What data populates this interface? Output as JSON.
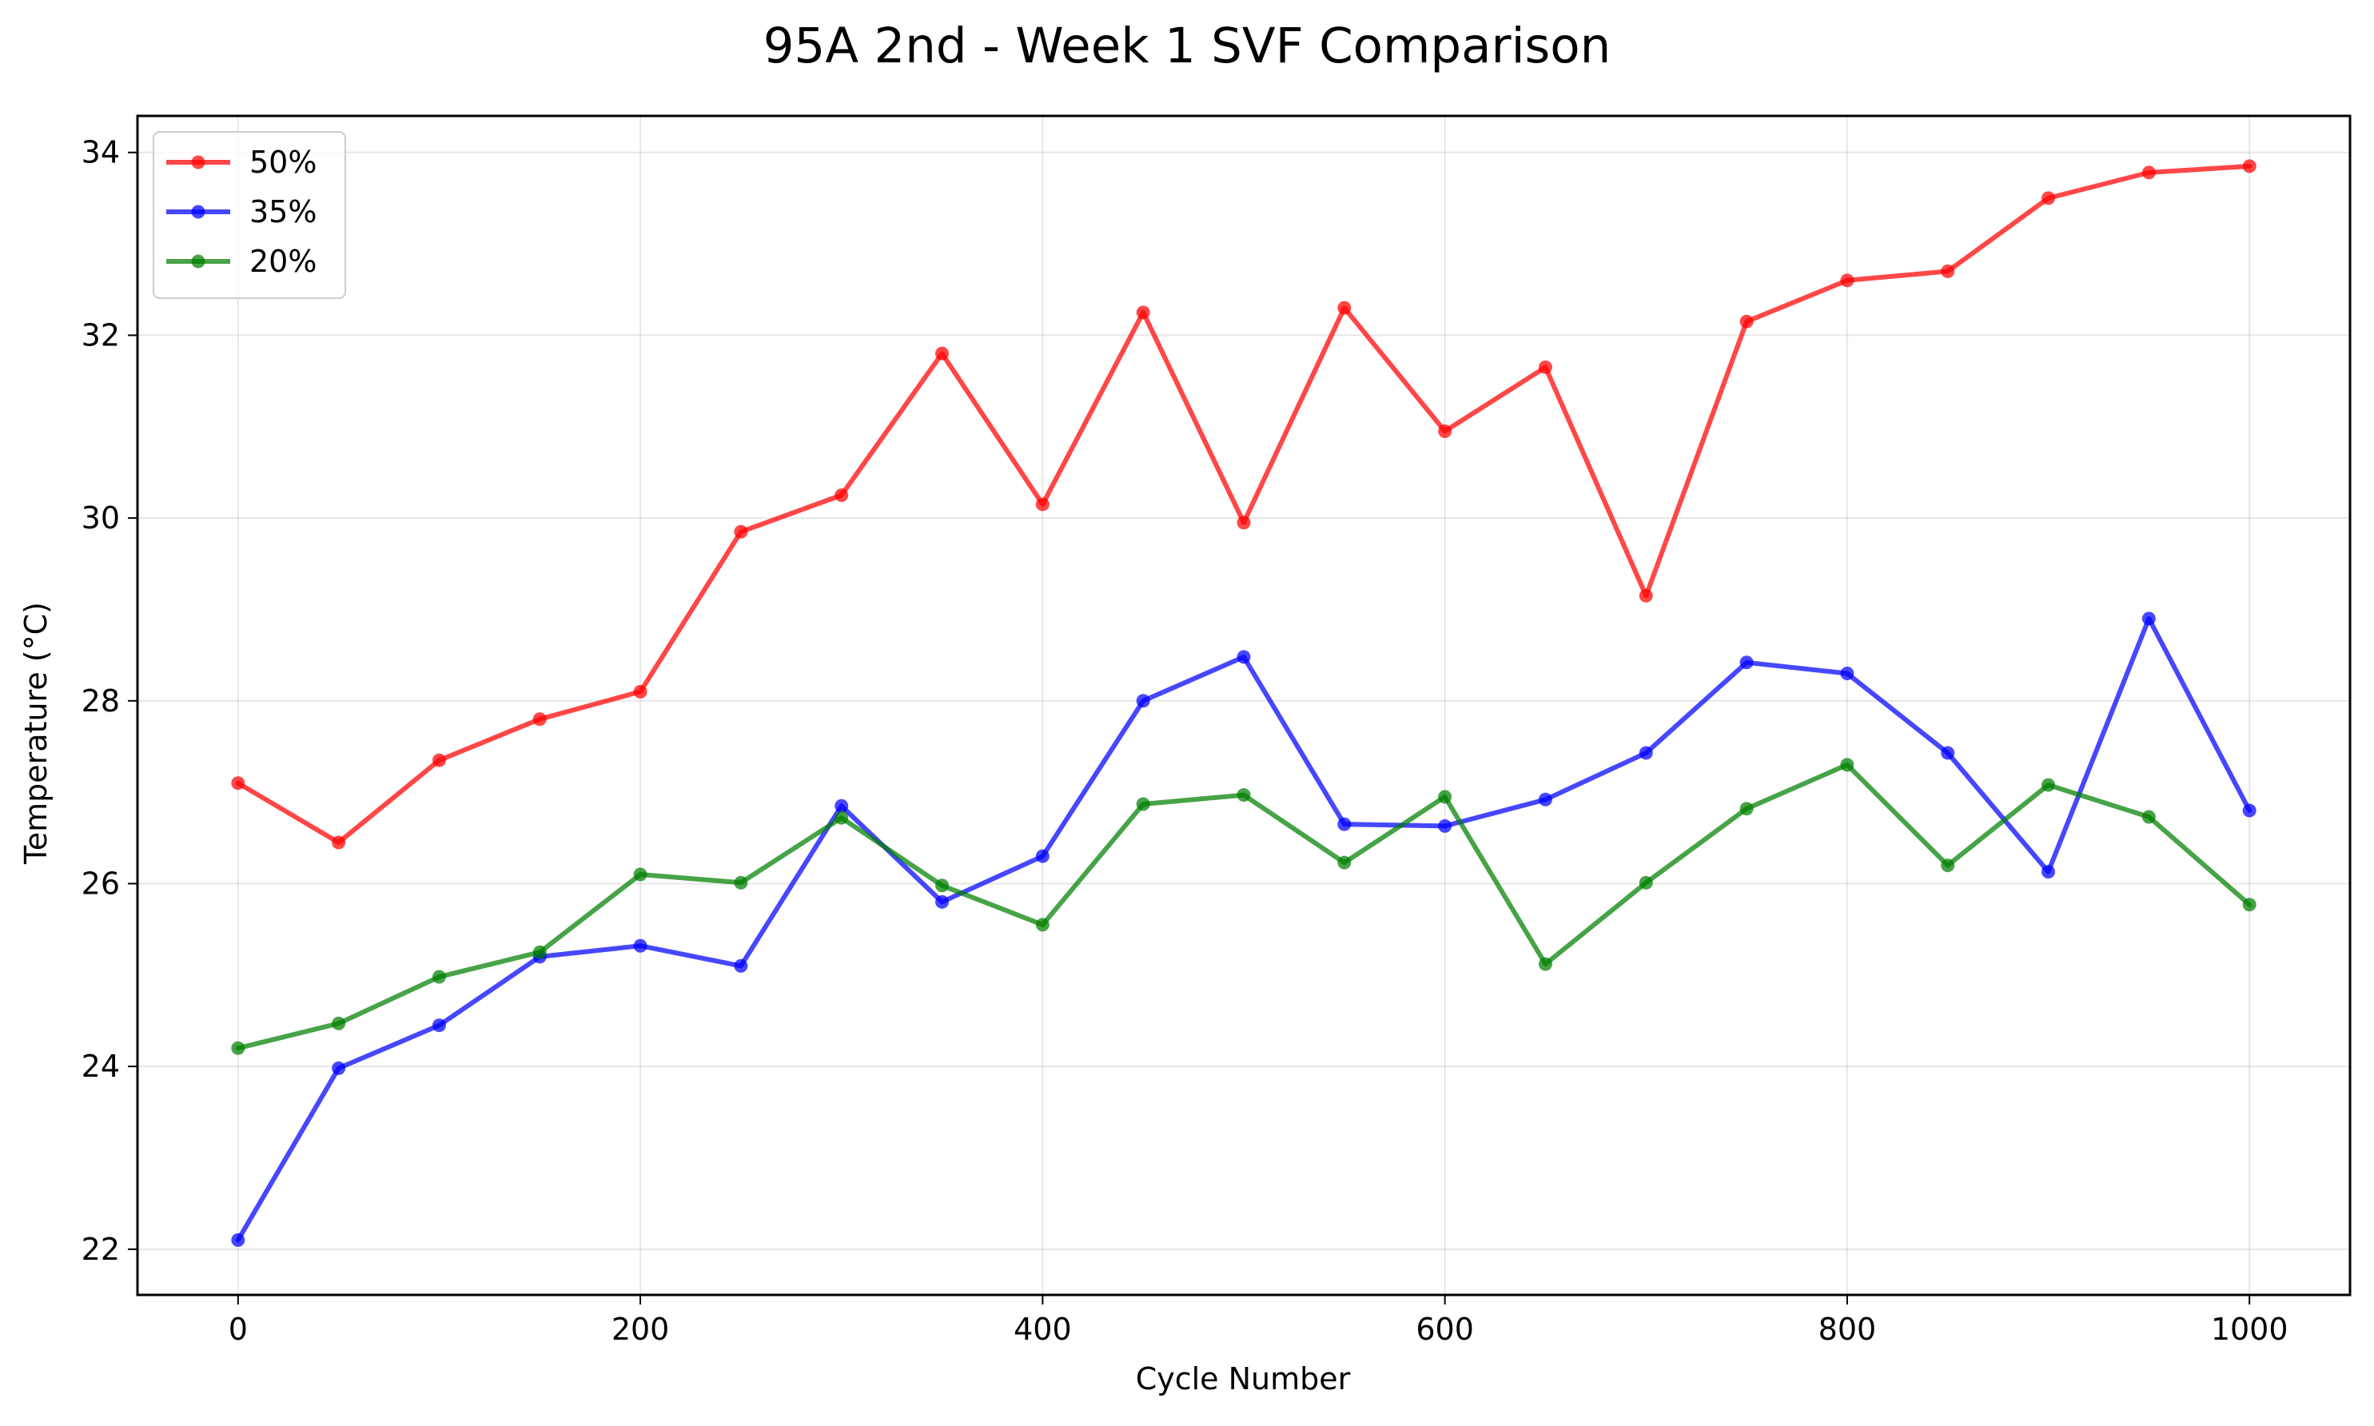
{
  "chart_data": {
    "type": "line",
    "title": "95A 2nd - Week 1 SVF Comparison",
    "xlabel": "Cycle Number",
    "ylabel": "Temperature (°C)",
    "xlim": [
      -50,
      1050
    ],
    "ylim": [
      21.5,
      34.4
    ],
    "x_ticks": [
      0,
      200,
      400,
      600,
      800,
      1000
    ],
    "y_ticks": [
      22,
      24,
      26,
      28,
      30,
      32,
      34
    ],
    "grid": true,
    "legend_position": "top-left",
    "x": [
      0,
      50,
      100,
      150,
      200,
      250,
      300,
      350,
      400,
      450,
      500,
      550,
      600,
      650,
      700,
      750,
      800,
      850,
      900,
      950,
      1000
    ],
    "series": [
      {
        "name": "50%",
        "color": "#ff0000",
        "values": [
          27.1,
          26.45,
          27.35,
          27.8,
          28.1,
          29.85,
          30.25,
          31.8,
          30.15,
          32.25,
          29.95,
          32.3,
          30.95,
          31.65,
          29.15,
          32.15,
          32.6,
          32.7,
          33.5,
          33.78,
          33.85
        ]
      },
      {
        "name": "35%",
        "color": "#0000ff",
        "values": [
          22.1,
          23.98,
          24.45,
          25.2,
          25.32,
          25.1,
          26.85,
          25.8,
          26.3,
          28.0,
          28.48,
          26.65,
          26.63,
          26.92,
          27.43,
          28.42,
          28.3,
          27.43,
          26.13,
          28.9,
          26.8
        ]
      },
      {
        "name": "20%",
        "color": "#008000",
        "values": [
          24.2,
          24.47,
          24.98,
          25.25,
          26.1,
          26.01,
          26.72,
          25.98,
          25.55,
          26.87,
          26.97,
          26.23,
          26.95,
          25.12,
          26.01,
          26.82,
          27.3,
          26.2,
          27.08,
          26.73,
          25.77
        ]
      }
    ]
  }
}
